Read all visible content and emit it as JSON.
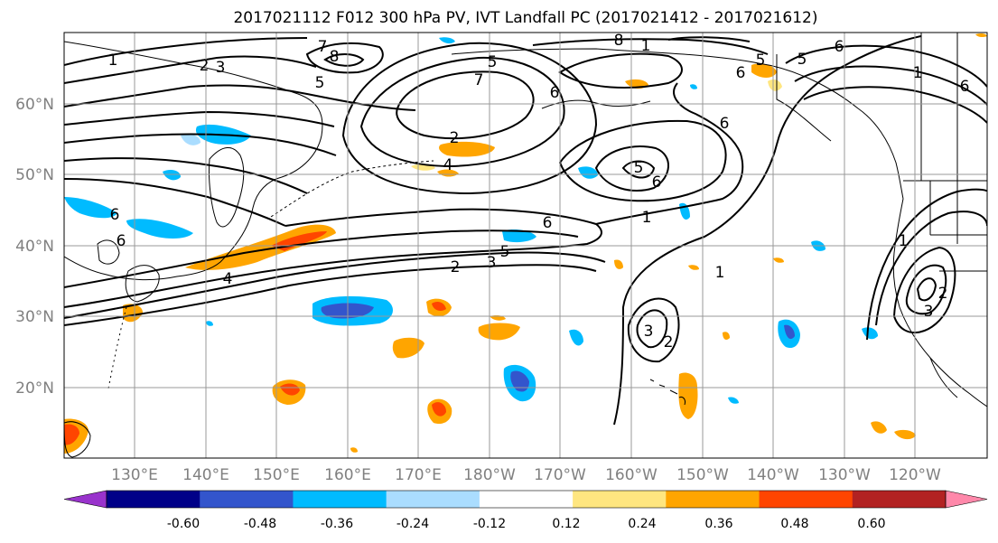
{
  "title": "2017021112 F012 300 hPa PV, IVT Landfall PC (2017021412 - 2017021612)",
  "latitude_labels": [
    "60°N",
    "50°N",
    "40°N",
    "30°N",
    "20°N"
  ],
  "longitude_labels": [
    "130°E",
    "140°E",
    "150°E",
    "160°E",
    "170°E",
    "180°W",
    "170°W",
    "160°W",
    "150°W",
    "140°W",
    "130°W",
    "120°W"
  ],
  "colorbar": {
    "tick_labels": [
      "-0.60",
      "-0.48",
      "-0.36",
      "-0.24",
      "-0.12",
      "0.12",
      "0.24",
      "0.36",
      "0.48",
      "0.60"
    ],
    "colors": [
      "#9933cc",
      "#000088",
      "#3355cc",
      "#00bbff",
      "#aaddff",
      "#ffffff",
      "#ffe680",
      "#ffa500",
      "#ff4500",
      "#b22222",
      "#ff88aa"
    ]
  },
  "pv_contour_labels": [
    "1",
    "2",
    "3",
    "7",
    "8",
    "5",
    "2",
    "4",
    "5",
    "6",
    "7",
    "8",
    "1",
    "6",
    "5",
    "6",
    "5",
    "6",
    "1",
    "6",
    "5",
    "6",
    "6",
    "1",
    "2",
    "3",
    "5",
    "6",
    "4",
    "6",
    "1",
    "2",
    "3",
    "1",
    "2",
    "3"
  ],
  "colors": {
    "grid": "#999999",
    "coast": "#000000",
    "contour": "#000000"
  }
}
